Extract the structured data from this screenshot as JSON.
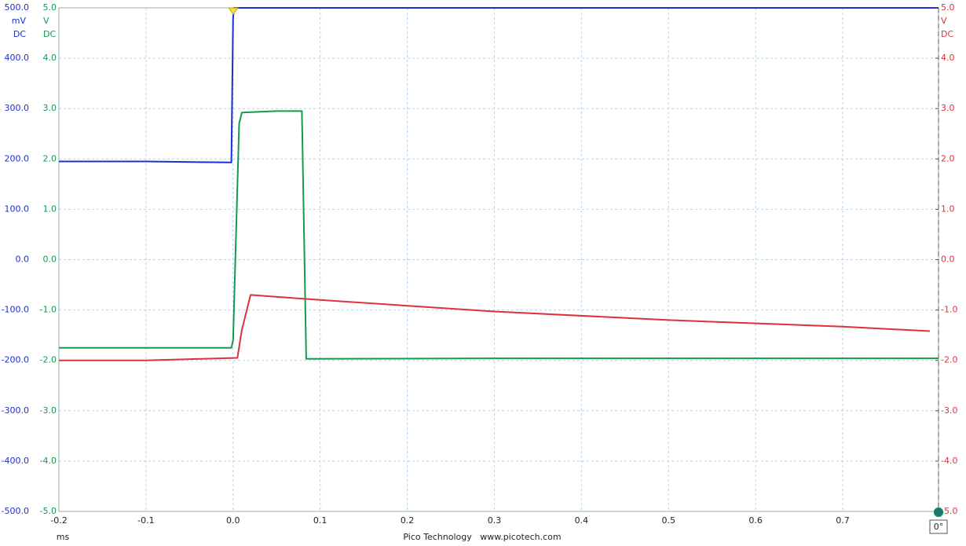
{
  "chart_data": {
    "type": "line",
    "xlim": [
      -0.2,
      0.81
    ],
    "xticks": [
      -0.2,
      -0.1,
      {
        "value": 0,
        "label": "0.0"
      },
      0.1,
      0.2,
      0.3,
      0.4,
      0.5,
      0.6,
      0.7
    ],
    "xunit": "ms",
    "ylim": [
      -500,
      500
    ],
    "yticks": [
      {
        "value": -500,
        "label": "-500.0"
      },
      {
        "value": -400,
        "label": "-400.0"
      },
      {
        "value": -300,
        "label": "-300.0"
      },
      {
        "value": -200,
        "label": "-200.0"
      },
      {
        "value": -100,
        "label": "-100.0"
      },
      {
        "value": 0,
        "label": "0.0"
      },
      {
        "value": 100,
        "label": "100.0"
      },
      {
        "value": 200,
        "label": "200.0"
      },
      {
        "value": 300,
        "label": "300.0"
      },
      {
        "value": 400,
        "label": "400.0"
      },
      {
        "value": 500,
        "label": "500.0"
      }
    ],
    "yunit": "mV",
    "ycoupling": "DC",
    "y2lim": [
      -5,
      5
    ],
    "y2ticks": [
      {
        "value": -5,
        "label": "-5.0"
      },
      {
        "value": -4,
        "label": "-4.0"
      },
      {
        "value": -3,
        "label": "-3.0"
      },
      {
        "value": -2,
        "label": "-2.0"
      },
      {
        "value": -1,
        "label": "-1.0"
      },
      {
        "value": 0,
        "label": "0.0"
      },
      {
        "value": 1,
        "label": "1.0"
      },
      {
        "value": 2,
        "label": "2.0"
      },
      {
        "value": 3,
        "label": "3.0"
      },
      {
        "value": 4,
        "label": "4.0"
      },
      {
        "value": 5,
        "label": "5.0"
      }
    ],
    "y2unit": "V",
    "y2coupling": "DC",
    "y3lim": [
      -5,
      5
    ],
    "y3ticks": [
      {
        "value": -5,
        "label": "-5.0"
      },
      {
        "value": -4,
        "label": "-4.0"
      },
      {
        "value": -3,
        "label": "-3.0"
      },
      {
        "value": -2,
        "label": "-2.0"
      },
      {
        "value": -1,
        "label": "-1.0"
      },
      {
        "value": 0,
        "label": "0.0"
      },
      {
        "value": 1,
        "label": "1.0"
      },
      {
        "value": 2,
        "label": "2.0"
      },
      {
        "value": 3,
        "label": "3.0"
      },
      {
        "value": 4,
        "label": "4.0"
      },
      {
        "value": 5,
        "label": "5.0"
      }
    ],
    "y3unit": "V",
    "y3coupling": "DC",
    "grid": true,
    "series": [
      {
        "color": "#1c2fd0",
        "axis": "y",
        "x": [
          -0.2,
          -0.1,
          -0.002,
          0.0,
          0.001,
          0.81
        ],
        "values": [
          195,
          195,
          193,
          480,
          500,
          500
        ]
      },
      {
        "color": "#149a4e",
        "axis": "y2",
        "x": [
          -0.2,
          -0.1,
          -0.002,
          0.0,
          0.007,
          0.01,
          0.05,
          0.079,
          0.082,
          0.084,
          0.3,
          0.81
        ],
        "values": [
          -1.75,
          -1.75,
          -1.75,
          -1.6,
          2.7,
          2.92,
          2.95,
          2.95,
          0,
          -1.97,
          -1.96,
          -1.96
        ]
      },
      {
        "color": "#e0303c",
        "axis": "y3",
        "x": [
          -0.2,
          -0.1,
          0.005,
          0.01,
          0.02,
          0.1,
          0.3,
          0.5,
          0.7,
          0.8
        ],
        "values": [
          -2.0,
          -2.0,
          -1.95,
          -1.4,
          -0.7,
          -0.8,
          -1.03,
          -1.2,
          -1.33,
          -1.42
        ]
      }
    ],
    "footer": "Pico Technology   www.picotech.com",
    "phase": "0°"
  }
}
